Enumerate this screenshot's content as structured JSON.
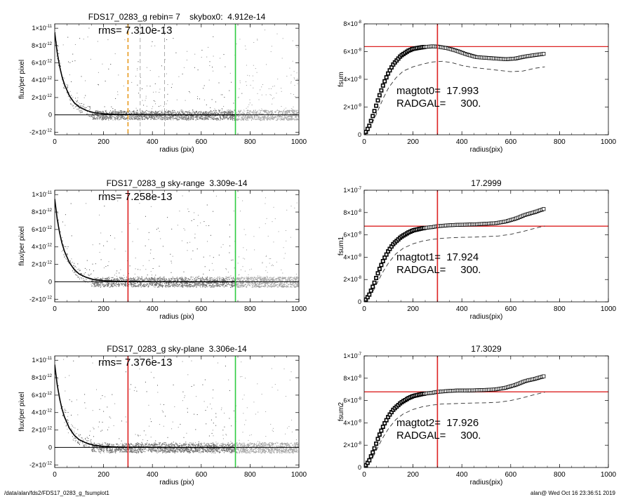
{
  "footer": {
    "left": "/data/alan/fds2/FDS17_0283_g_fsumplot1",
    "right": "alan@  Wed Oct 16 23:36:51 2019"
  },
  "colors": {
    "sky_vline": "#2ecc40",
    "marker": "#dd2222",
    "marker_dashed": "#e89a1e",
    "scatter_grey": "#aaaaaa"
  },
  "chart_data": [
    {
      "type": "scatter",
      "title": "FDS17_0283_g rebin= 7    skybox0:  4.912e-14",
      "annotation": "rms= 7.310e-13",
      "xlabel": "radius (pix)",
      "ylabel": "flux/per pixel",
      "xlim": [
        0,
        1000
      ],
      "ylim": [
        -2.3e-12,
        1.05e-11
      ],
      "xticks": [
        0,
        200,
        400,
        600,
        800,
        1000
      ],
      "xtick_labels": [
        "0",
        "200",
        "400",
        "600",
        "800",
        "1000"
      ],
      "yticks": [
        -2e-12,
        0,
        2e-12,
        4e-12,
        6e-12,
        8e-12,
        1e-11
      ],
      "ytick_labels": [
        [
          "-2",
          "-12"
        ],
        [
          "0",
          ""
        ],
        [
          "2",
          "-12"
        ],
        [
          "4",
          "-12"
        ],
        [
          "6",
          "-12"
        ],
        [
          "8",
          "-12"
        ],
        [
          "1",
          "-11"
        ]
      ],
      "profile_x": [
        0,
        10,
        20,
        30,
        40,
        60,
        80,
        100,
        130,
        160,
        200,
        250,
        300,
        400,
        500,
        740
      ],
      "profile_y": [
        9.5e-12,
        7.2e-12,
        5.6e-12,
        4.4e-12,
        3.5e-12,
        2.2e-12,
        1.4e-12,
        9e-13,
        5e-13,
        2.5e-13,
        1.2e-13,
        6e-14,
        3e-14,
        1e-14,
        0,
        0
      ],
      "zero_line": 0,
      "vlines": [
        {
          "x": 300,
          "role": "radgal",
          "color": "#e89a1e",
          "dashed": true
        },
        {
          "x": 350,
          "role": "ring",
          "color": "#999999",
          "dashed": true
        },
        {
          "x": 450,
          "role": "ring",
          "color": "#999999",
          "dashed": true
        },
        {
          "x": 740,
          "role": "sky_radius",
          "color": "#2ecc40",
          "dashed": false
        }
      ],
      "hlines": []
    },
    {
      "type": "line",
      "title": "",
      "annotation_lines": [
        "magtot0=  17.993",
        "RADGAL=     300."
      ],
      "xlabel": "radius(pix)",
      "ylabel": "fsum",
      "xlim": [
        0,
        1000
      ],
      "ylim": [
        0,
        8e-08
      ],
      "xticks": [
        0,
        200,
        400,
        600,
        800,
        1000
      ],
      "xtick_labels": [
        "0",
        "200",
        "400",
        "600",
        "800",
        "1000"
      ],
      "yticks": [
        0,
        2e-08,
        4e-08,
        6e-08,
        8e-08
      ],
      "ytick_labels": [
        [
          "0",
          ""
        ],
        [
          "2",
          "-8"
        ],
        [
          "4",
          "-8"
        ],
        [
          "6",
          "-8"
        ],
        [
          "8",
          "-8"
        ]
      ],
      "series": [
        {
          "style": "markers",
          "x": [
            0,
            20,
            40,
            60,
            80,
            100,
            120,
            150,
            180,
            200,
            240,
            280,
            300,
            340,
            380,
            420,
            460,
            500,
            540,
            580,
            620,
            660,
            700,
            740
          ],
          "y": [
            0,
            6e-09,
            1.6e-08,
            2.7e-08,
            3.7e-08,
            4.5e-08,
            5.1e-08,
            5.7e-08,
            6.05e-08,
            6.2e-08,
            6.32e-08,
            6.38e-08,
            6.36e-08,
            6.25e-08,
            6.05e-08,
            5.8e-08,
            5.6e-08,
            5.55e-08,
            5.5e-08,
            5.45e-08,
            5.5e-08,
            5.65e-08,
            5.75e-08,
            5.85e-08
          ]
        },
        {
          "style": "dashed",
          "x": [
            0,
            20,
            40,
            60,
            80,
            100,
            130,
            160,
            200,
            240,
            280,
            320,
            360,
            400,
            450,
            500,
            550,
            600,
            650,
            700,
            740
          ],
          "y": [
            0,
            4e-09,
            1.1e-08,
            1.9e-08,
            2.7e-08,
            3.4e-08,
            4.1e-08,
            4.6e-08,
            4.9e-08,
            5.1e-08,
            5.25e-08,
            5.3e-08,
            5.2e-08,
            5e-08,
            4.85e-08,
            4.75e-08,
            4.65e-08,
            4.55e-08,
            4.6e-08,
            4.8e-08,
            4.9e-08
          ]
        }
      ],
      "vlines": [
        {
          "x": 300,
          "color": "#dd2222"
        }
      ],
      "hlines": [
        {
          "y": 6.36e-08,
          "color": "#dd2222"
        }
      ]
    },
    {
      "type": "scatter",
      "title": "FDS17_0283_g sky-range  3.309e-14",
      "annotation": "rms= 7.258e-13",
      "xlabel": "radius (pix)",
      "ylabel": "flux/per pixel",
      "xlim": [
        0,
        1000
      ],
      "ylim": [
        -2.3e-12,
        1.05e-11
      ],
      "xticks": [
        0,
        200,
        400,
        600,
        800,
        1000
      ],
      "xtick_labels": [
        "0",
        "200",
        "400",
        "600",
        "800",
        "1000"
      ],
      "yticks": [
        -2e-12,
        0,
        2e-12,
        4e-12,
        6e-12,
        8e-12,
        1e-11
      ],
      "ytick_labels": [
        [
          "-2",
          "-12"
        ],
        [
          "0",
          ""
        ],
        [
          "2",
          "-12"
        ],
        [
          "4",
          "-12"
        ],
        [
          "6",
          "-12"
        ],
        [
          "8",
          "-12"
        ],
        [
          "1",
          "-11"
        ]
      ],
      "profile_x": [
        0,
        10,
        20,
        30,
        40,
        60,
        80,
        100,
        130,
        160,
        200,
        250,
        300,
        400,
        500,
        740
      ],
      "profile_y": [
        9.5e-12,
        7.2e-12,
        5.6e-12,
        4.4e-12,
        3.5e-12,
        2.2e-12,
        1.4e-12,
        9e-13,
        5e-13,
        2.5e-13,
        1.2e-13,
        6e-14,
        3e-14,
        1e-14,
        0,
        0
      ],
      "zero_line": 0,
      "vlines": [
        {
          "x": 300,
          "role": "radgal",
          "color": "#dd2222",
          "dashed": false
        },
        {
          "x": 740,
          "role": "sky_radius",
          "color": "#2ecc40",
          "dashed": false
        }
      ],
      "hlines": []
    },
    {
      "type": "line",
      "title": "17.2999",
      "annotation_lines": [
        "magtot1=  17.924",
        "RADGAL=     300."
      ],
      "xlabel": "radius(pix)",
      "ylabel": "fsum1",
      "xlim": [
        0,
        1000
      ],
      "ylim": [
        0,
        1e-07
      ],
      "xticks": [
        0,
        200,
        400,
        600,
        800,
        1000
      ],
      "xtick_labels": [
        "0",
        "200",
        "400",
        "600",
        "800",
        "1000"
      ],
      "yticks": [
        0,
        2e-08,
        4e-08,
        6e-08,
        8e-08,
        1e-07
      ],
      "ytick_labels": [
        [
          "0",
          ""
        ],
        [
          "2",
          "-8"
        ],
        [
          "4",
          "-8"
        ],
        [
          "6",
          "-8"
        ],
        [
          "8",
          "-8"
        ],
        [
          "1",
          "-7"
        ]
      ],
      "series": [
        {
          "style": "markers",
          "x": [
            0,
            20,
            40,
            60,
            80,
            100,
            120,
            150,
            180,
            200,
            240,
            280,
            300,
            340,
            380,
            420,
            460,
            500,
            540,
            580,
            620,
            660,
            700,
            740
          ],
          "y": [
            0,
            6e-09,
            1.6e-08,
            2.8e-08,
            3.8e-08,
            4.6e-08,
            5.2e-08,
            5.8e-08,
            6.2e-08,
            6.4e-08,
            6.6e-08,
            6.7e-08,
            6.78e-08,
            6.85e-08,
            6.9e-08,
            6.92e-08,
            6.95e-08,
            7e-08,
            7.05e-08,
            7.2e-08,
            7.45e-08,
            7.8e-08,
            8.05e-08,
            8.35e-08
          ]
        },
        {
          "style": "dashed",
          "x": [
            0,
            20,
            40,
            60,
            80,
            100,
            130,
            160,
            200,
            240,
            280,
            320,
            360,
            400,
            450,
            500,
            550,
            600,
            650,
            700,
            740
          ],
          "y": [
            0,
            4e-09,
            1.1e-08,
            2e-08,
            2.8e-08,
            3.5e-08,
            4.3e-08,
            4.8e-08,
            5.2e-08,
            5.45e-08,
            5.6e-08,
            5.7e-08,
            5.75e-08,
            5.78e-08,
            5.8e-08,
            5.85e-08,
            5.9e-08,
            6.05e-08,
            6.3e-08,
            6.6e-08,
            6.8e-08
          ]
        }
      ],
      "vlines": [
        {
          "x": 300,
          "color": "#dd2222"
        }
      ],
      "hlines": [
        {
          "y": 6.78e-08,
          "color": "#dd2222"
        }
      ]
    },
    {
      "type": "scatter",
      "title": "FDS17_0283_g sky-plane  3.306e-14",
      "annotation": "rms= 7.376e-13",
      "xlabel": "radius (pix)",
      "ylabel": "flux/per pixel",
      "xlim": [
        0,
        1000
      ],
      "ylim": [
        -2.3e-12,
        1.05e-11
      ],
      "xticks": [
        0,
        200,
        400,
        600,
        800,
        1000
      ],
      "xtick_labels": [
        "0",
        "200",
        "400",
        "600",
        "800",
        "1000"
      ],
      "yticks": [
        -2e-12,
        0,
        2e-12,
        4e-12,
        6e-12,
        8e-12,
        1e-11
      ],
      "ytick_labels": [
        [
          "-2",
          "-12"
        ],
        [
          "0",
          ""
        ],
        [
          "2",
          "-12"
        ],
        [
          "4",
          "-12"
        ],
        [
          "6",
          "-12"
        ],
        [
          "8",
          "-12"
        ],
        [
          "1",
          "-11"
        ]
      ],
      "profile_x": [
        0,
        10,
        20,
        30,
        40,
        60,
        80,
        100,
        130,
        160,
        200,
        250,
        300,
        400,
        500,
        740
      ],
      "profile_y": [
        9.5e-12,
        7.2e-12,
        5.6e-12,
        4.4e-12,
        3.5e-12,
        2.2e-12,
        1.4e-12,
        9e-13,
        5e-13,
        2.5e-13,
        1.2e-13,
        6e-14,
        3e-14,
        1e-14,
        0,
        0
      ],
      "zero_line": 0,
      "vlines": [
        {
          "x": 300,
          "role": "radgal",
          "color": "#dd2222",
          "dashed": false
        },
        {
          "x": 740,
          "role": "sky_radius",
          "color": "#2ecc40",
          "dashed": false
        }
      ],
      "hlines": []
    },
    {
      "type": "line",
      "title": "17.3029",
      "annotation_lines": [
        "magtot2=  17.926",
        "RADGAL=     300."
      ],
      "xlabel": "radius(pix)",
      "ylabel": "fsum2",
      "xlim": [
        0,
        1000
      ],
      "ylim": [
        0,
        1e-07
      ],
      "xticks": [
        0,
        200,
        400,
        600,
        800,
        1000
      ],
      "xtick_labels": [
        "0",
        "200",
        "400",
        "600",
        "800",
        "1000"
      ],
      "yticks": [
        0,
        2e-08,
        4e-08,
        6e-08,
        8e-08,
        1e-07
      ],
      "ytick_labels": [
        [
          "0",
          ""
        ],
        [
          "2",
          "-8"
        ],
        [
          "4",
          "-8"
        ],
        [
          "6",
          "-8"
        ],
        [
          "8",
          "-8"
        ],
        [
          "1",
          "-7"
        ]
      ],
      "series": [
        {
          "style": "markers",
          "x": [
            0,
            20,
            40,
            60,
            80,
            100,
            120,
            150,
            180,
            200,
            240,
            280,
            300,
            340,
            380,
            420,
            460,
            500,
            540,
            580,
            620,
            660,
            700,
            740
          ],
          "y": [
            0,
            6e-09,
            1.6e-08,
            2.8e-08,
            3.8e-08,
            4.6e-08,
            5.2e-08,
            5.8e-08,
            6.2e-08,
            6.4e-08,
            6.6e-08,
            6.7e-08,
            6.78e-08,
            6.85e-08,
            6.9e-08,
            6.9e-08,
            6.92e-08,
            6.95e-08,
            7e-08,
            7.15e-08,
            7.4e-08,
            7.75e-08,
            7.95e-08,
            8.2e-08
          ]
        },
        {
          "style": "dashed",
          "x": [
            0,
            20,
            40,
            60,
            80,
            100,
            130,
            160,
            200,
            240,
            280,
            320,
            360,
            400,
            450,
            500,
            550,
            600,
            650,
            700,
            740
          ],
          "y": [
            0,
            4e-09,
            1.1e-08,
            2e-08,
            2.8e-08,
            3.5e-08,
            4.3e-08,
            4.8e-08,
            5.2e-08,
            5.45e-08,
            5.6e-08,
            5.7e-08,
            5.72e-08,
            5.75e-08,
            5.78e-08,
            5.8e-08,
            5.85e-08,
            6e-08,
            6.25e-08,
            6.55e-08,
            6.75e-08
          ]
        }
      ],
      "vlines": [
        {
          "x": 300,
          "color": "#dd2222"
        }
      ],
      "hlines": [
        {
          "y": 6.78e-08,
          "color": "#dd2222"
        }
      ]
    }
  ]
}
